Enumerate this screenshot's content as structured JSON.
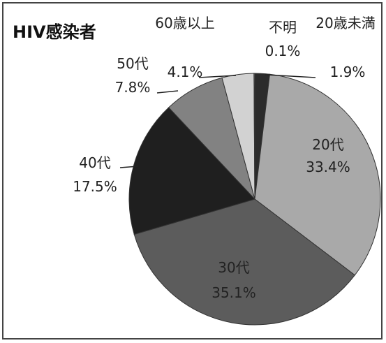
{
  "chart_data": {
    "type": "pie",
    "title": "HIV感染者",
    "categories": [
      "20歳未満",
      "20代",
      "30代",
      "40代",
      "50代",
      "60歳以上",
      "不明"
    ],
    "values": [
      1.9,
      33.4,
      35.1,
      17.5,
      7.8,
      4.1,
      0.1
    ],
    "value_labels": [
      "1.9%",
      "33.4%",
      "35.1%",
      "17.5%",
      "7.8%",
      "4.1%",
      "0.1%"
    ],
    "colors": [
      "#2b2b2b",
      "#a9a9a9",
      "#5c5c5c",
      "#1f1f1f",
      "#828282",
      "#d2d2d2",
      "#f2f2f2"
    ]
  }
}
